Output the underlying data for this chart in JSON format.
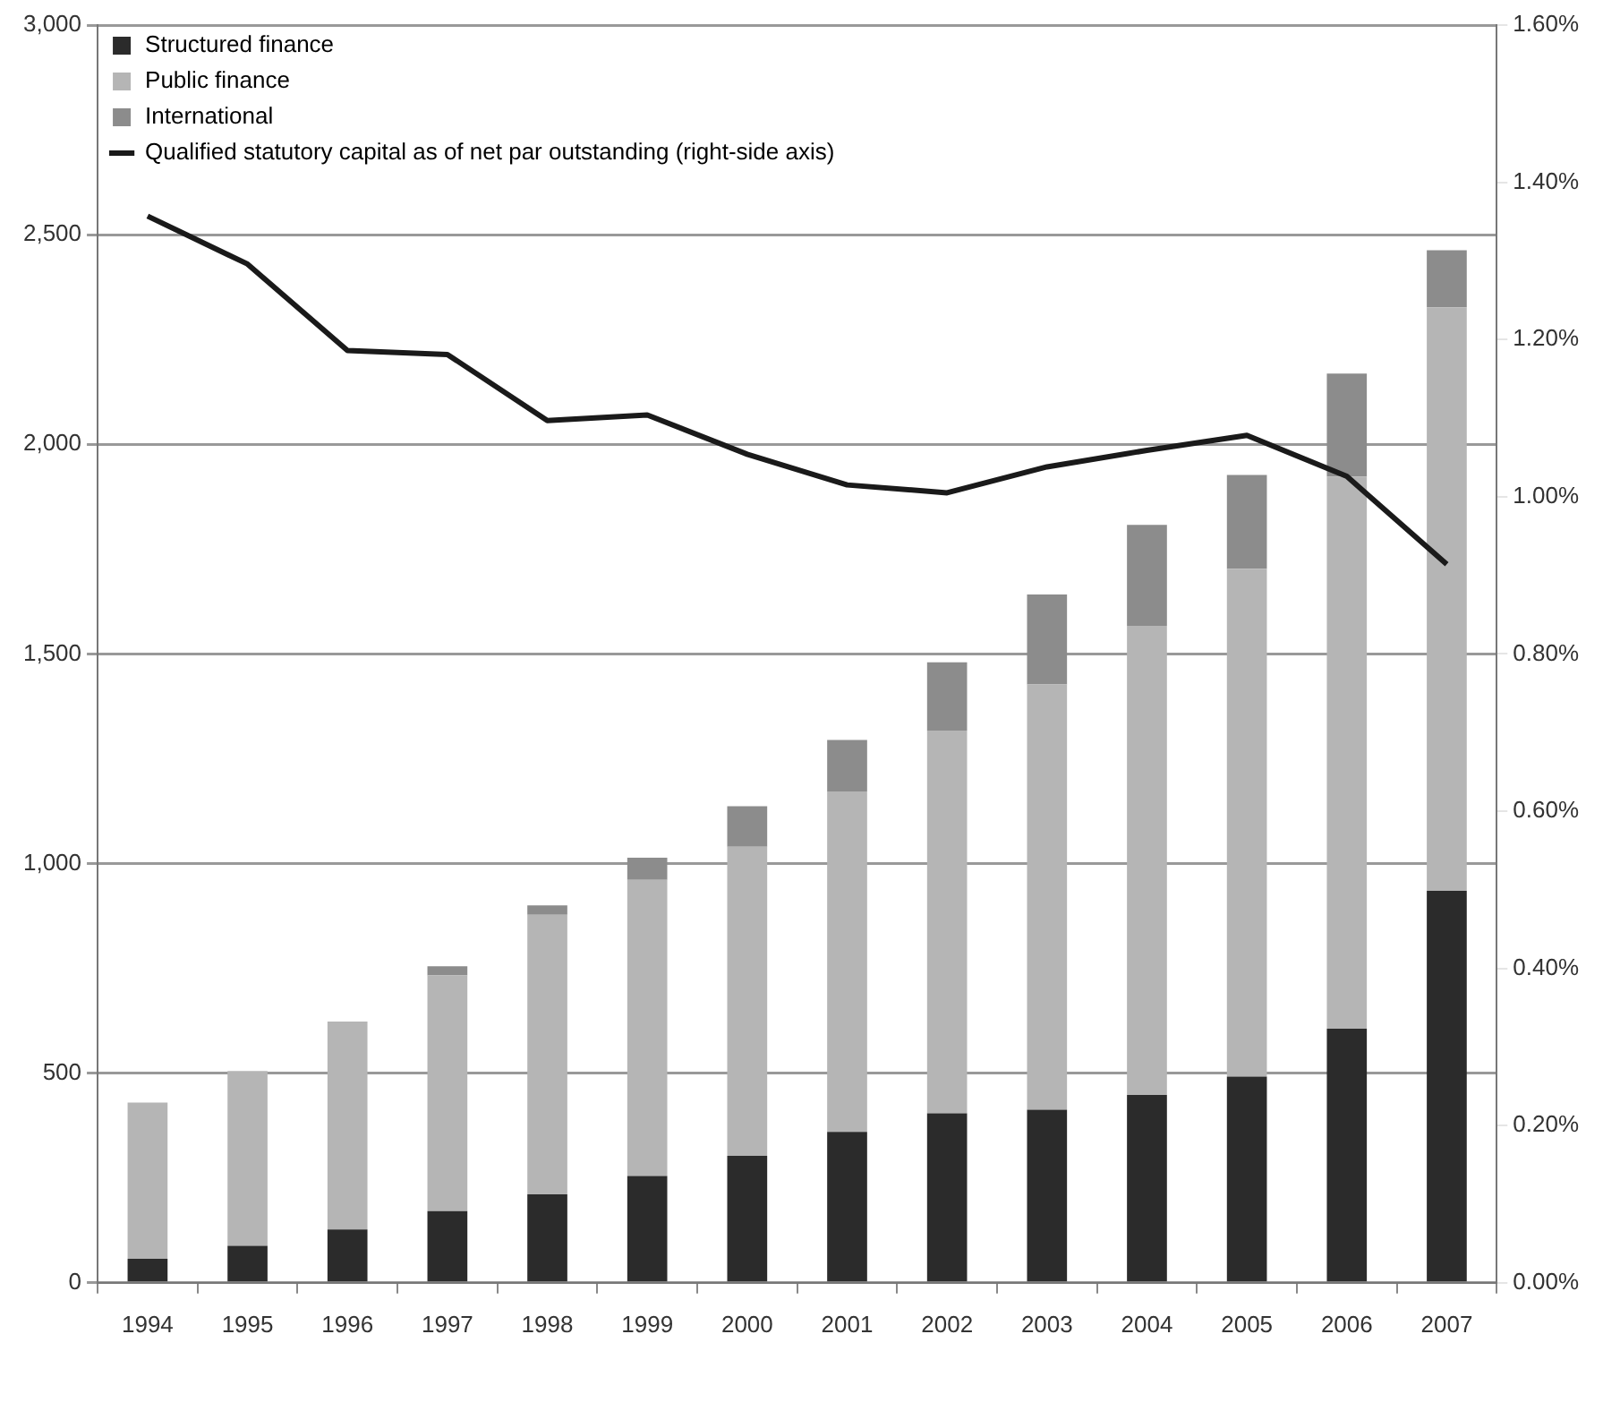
{
  "chart_data": {
    "type": "bar",
    "stacked": true,
    "categories": [
      "1994",
      "1995",
      "1996",
      "1997",
      "1998",
      "1999",
      "2000",
      "2001",
      "2002",
      "2003",
      "2004",
      "2005",
      "2006",
      "2007"
    ],
    "series": [
      {
        "name": "Structured finance",
        "color": "#2b2b2b",
        "values": [
          57,
          88,
          127,
          171,
          211,
          255,
          303,
          360,
          404,
          413,
          448,
          492,
          606,
          935
        ]
      },
      {
        "name": "Public finance",
        "color": "#b5b5b5",
        "values": [
          373,
          417,
          496,
          562,
          667,
          706,
          737,
          812,
          913,
          1014,
          1119,
          1211,
          1317,
          1392
        ]
      },
      {
        "name": "International",
        "color": "#8c8c8c",
        "values": [
          0,
          0,
          0,
          22,
          22,
          53,
          97,
          123,
          163,
          215,
          241,
          224,
          246,
          136
        ]
      },
      {
        "name": "Qualified statutory capital as of net par outstanding (right-side axis)",
        "type": "line",
        "axis": "y2",
        "color": "#1a1a1a",
        "values": [
          1.357,
          1.296,
          1.186,
          1.181,
          1.097,
          1.104,
          1.054,
          1.015,
          1.005,
          1.038,
          1.059,
          1.078,
          1.026,
          0.914
        ]
      }
    ],
    "ylim": [
      0,
      3000
    ],
    "yticks": [
      {
        "value": 0,
        "label": "0"
      },
      {
        "value": 500,
        "label": "500"
      },
      {
        "value": 1000,
        "label": "1,000"
      },
      {
        "value": 1500,
        "label": "1,500"
      },
      {
        "value": 2000,
        "label": "2,000"
      },
      {
        "value": 2500,
        "label": "2,500"
      },
      {
        "value": 3000,
        "label": "3,000"
      }
    ],
    "y2lim": [
      0,
      1.6
    ],
    "y2ticks": [
      {
        "value": 0,
        "label": "0.00%"
      },
      {
        "value": 0.2,
        "label": "0.20%"
      },
      {
        "value": 0.4,
        "label": "0.40%"
      },
      {
        "value": 0.6,
        "label": "0.60%"
      },
      {
        "value": 0.8,
        "label": "0.80%"
      },
      {
        "value": 1.0,
        "label": "1.00%"
      },
      {
        "value": 1.2,
        "label": "1.20%"
      },
      {
        "value": 1.4,
        "label": "1.40%"
      },
      {
        "value": 1.6,
        "label": "1.60%"
      }
    ],
    "grid": "y",
    "legend": "top left",
    "marker": "none"
  }
}
